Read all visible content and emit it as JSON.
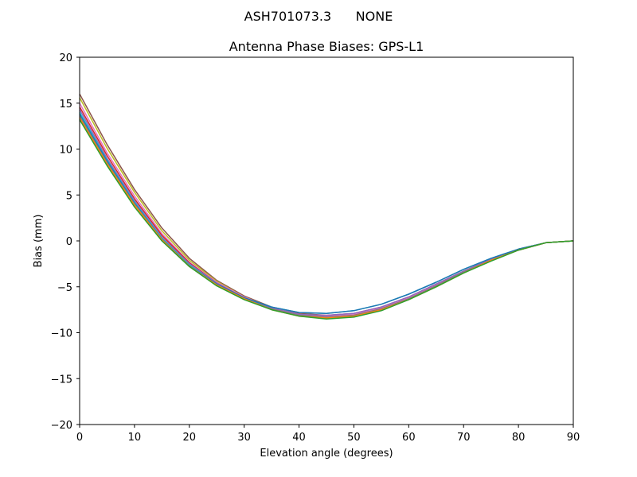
{
  "chart_data": {
    "type": "line",
    "suptitle": "ASH701073.3      NONE",
    "title": "Antenna Phase Biases: GPS-L1",
    "xlabel": "Elevation angle (degrees)",
    "ylabel": "Bias (mm)",
    "xlim": [
      0,
      90
    ],
    "ylim": [
      -20,
      20
    ],
    "xticks": [
      0,
      10,
      20,
      30,
      40,
      50,
      60,
      70,
      80,
      90
    ],
    "xtick_labels": [
      "0",
      "10",
      "20",
      "30",
      "40",
      "50",
      "60",
      "70",
      "80",
      "90"
    ],
    "yticks": [
      -20,
      -15,
      -10,
      -5,
      0,
      5,
      10,
      15,
      20
    ],
    "ytick_labels": [
      "−20",
      "−15",
      "−10",
      "−5",
      "0",
      "5",
      "10",
      "15",
      "20"
    ],
    "grid": false,
    "x": [
      0,
      5,
      10,
      15,
      20,
      25,
      30,
      35,
      40,
      45,
      50,
      55,
      60,
      65,
      70,
      75,
      80,
      85,
      90
    ],
    "series": [
      {
        "color": "#8c564b",
        "values": [
          16.0,
          10.5,
          5.6,
          1.4,
          -1.9,
          -4.3,
          -6.0,
          -7.2,
          -7.9,
          -8.1,
          -7.9,
          -7.2,
          -6.1,
          -4.7,
          -3.3,
          -2.0,
          -0.9,
          -0.2,
          0.0
        ]
      },
      {
        "color": "#bcbd22",
        "values": [
          15.6,
          10.1,
          5.3,
          1.1,
          -2.1,
          -4.4,
          -6.1,
          -7.3,
          -8.0,
          -8.2,
          -8.0,
          -7.3,
          -6.2,
          -4.8,
          -3.3,
          -2.0,
          -0.9,
          -0.2,
          0.0
        ]
      },
      {
        "color": "#e377c2",
        "values": [
          15.0,
          9.6,
          4.9,
          0.8,
          -2.3,
          -4.5,
          -6.1,
          -7.3,
          -8.0,
          -8.2,
          -8.0,
          -7.3,
          -6.2,
          -4.8,
          -3.4,
          -2.1,
          -1.0,
          -0.2,
          0.0
        ]
      },
      {
        "color": "#d62728",
        "values": [
          14.6,
          9.3,
          4.6,
          0.6,
          -2.4,
          -4.6,
          -6.2,
          -7.4,
          -8.1,
          -8.3,
          -8.1,
          -7.4,
          -6.3,
          -4.9,
          -3.4,
          -2.1,
          -1.0,
          -0.2,
          0.0
        ]
      },
      {
        "color": "#9467bd",
        "values": [
          14.3,
          9.0,
          4.4,
          0.4,
          -2.5,
          -4.6,
          -6.2,
          -7.3,
          -8.0,
          -8.1,
          -7.9,
          -7.2,
          -6.1,
          -4.7,
          -3.3,
          -2.0,
          -0.9,
          -0.2,
          0.0
        ]
      },
      {
        "color": "#17becf",
        "values": [
          14.0,
          8.8,
          4.2,
          0.3,
          -2.6,
          -4.7,
          -6.2,
          -7.2,
          -7.8,
          -7.9,
          -7.6,
          -6.9,
          -5.8,
          -4.5,
          -3.1,
          -1.9,
          -0.9,
          -0.2,
          0.0
        ]
      },
      {
        "color": "#1f77b4",
        "values": [
          13.8,
          8.7,
          4.1,
          0.2,
          -2.7,
          -4.7,
          -6.2,
          -7.2,
          -7.8,
          -7.9,
          -7.6,
          -6.9,
          -5.8,
          -4.5,
          -3.1,
          -1.9,
          -0.9,
          -0.2,
          0.0
        ]
      },
      {
        "color": "#7f7f7f",
        "values": [
          13.6,
          8.5,
          4.0,
          0.2,
          -2.7,
          -4.8,
          -6.3,
          -7.4,
          -8.1,
          -8.3,
          -8.1,
          -7.4,
          -6.3,
          -4.9,
          -3.4,
          -2.1,
          -1.0,
          -0.2,
          0.0
        ]
      },
      {
        "color": "#ff7f0e",
        "values": [
          13.4,
          8.4,
          3.9,
          0.1,
          -2.8,
          -4.8,
          -6.3,
          -7.5,
          -8.2,
          -8.4,
          -8.2,
          -7.5,
          -6.4,
          -5.0,
          -3.5,
          -2.1,
          -1.0,
          -0.2,
          0.0
        ]
      },
      {
        "color": "#2ca02c",
        "values": [
          13.2,
          8.2,
          3.7,
          0.0,
          -2.8,
          -4.9,
          -6.4,
          -7.5,
          -8.2,
          -8.5,
          -8.3,
          -7.6,
          -6.4,
          -5.0,
          -3.5,
          -2.2,
          -1.0,
          -0.2,
          0.0
        ]
      }
    ]
  }
}
